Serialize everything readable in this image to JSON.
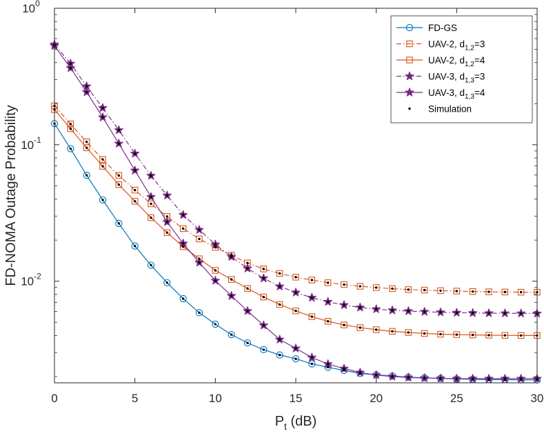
{
  "chart_data": {
    "type": "line",
    "title": "",
    "xlabel": "P",
    "xlabel_sub": "t",
    "xlabel_suffix": " (dB)",
    "ylabel": "FD-NOMA Outage Probability",
    "xlim": [
      0,
      30
    ],
    "ylim": [
      0.0018,
      1
    ],
    "yscale": "log",
    "x_ticks": [
      0,
      5,
      10,
      15,
      20,
      25,
      30
    ],
    "x_tick_labels": [
      "0",
      "5",
      "10",
      "15",
      "20",
      "25",
      "30"
    ],
    "y_ticks": [
      1,
      0.1,
      0.01
    ],
    "y_tick_labels": [
      {
        "base": "10",
        "exp": "0"
      },
      {
        "base": "10",
        "exp": "-1"
      },
      {
        "base": "10",
        "exp": "-2"
      }
    ],
    "grid": false,
    "legend_position": "top-right",
    "x": [
      0,
      1,
      2,
      3,
      4,
      5,
      6,
      7,
      8,
      9,
      10,
      11,
      12,
      13,
      14,
      15,
      16,
      17,
      18,
      19,
      20,
      21,
      22,
      23,
      24,
      25,
      26,
      27,
      28,
      29,
      30
    ],
    "series": [
      {
        "name": "FD-GS",
        "legend": {
          "pre": "FD-GS",
          "sub": "",
          "post": ""
        },
        "color": "#0072BD",
        "dash": "solid",
        "marker": "circle",
        "values": [
          0.143,
          0.0935,
          0.0597,
          0.0394,
          0.0265,
          0.0181,
          0.0131,
          0.00975,
          0.00745,
          0.00588,
          0.00484,
          0.00406,
          0.00353,
          0.00315,
          0.00288,
          0.0027,
          0.00248,
          0.00234,
          0.00222,
          0.00211,
          0.00206,
          0.00202,
          0.00198,
          0.00196,
          0.00194,
          0.00192,
          0.00191,
          0.0019,
          0.0019,
          0.00189,
          0.00189
        ]
      },
      {
        "name": "UAV-2, d1,2=3",
        "legend": {
          "pre": "UAV-2, d",
          "sub": "1,2",
          "post": "=3"
        },
        "color": "#D95319",
        "dash": "dashdot",
        "marker": "square",
        "values": [
          0.193,
          0.142,
          0.105,
          0.078,
          0.0595,
          0.0465,
          0.0369,
          0.0298,
          0.0243,
          0.0204,
          0.0177,
          0.0155,
          0.0136,
          0.0123,
          0.0114,
          0.0107,
          0.0102,
          0.00975,
          0.00945,
          0.00918,
          0.00898,
          0.00882,
          0.00868,
          0.0086,
          0.00852,
          0.00846,
          0.0084,
          0.00836,
          0.00833,
          0.00831,
          0.0083
        ]
      },
      {
        "name": "UAV-2, d1,2=4",
        "legend": {
          "pre": "UAV-2, d",
          "sub": "1,2",
          "post": "=4"
        },
        "color": "#D95319",
        "dash": "solid",
        "marker": "square",
        "values": [
          0.181,
          0.131,
          0.095,
          0.0695,
          0.051,
          0.0385,
          0.0292,
          0.0227,
          0.0179,
          0.0146,
          0.012,
          0.0103,
          0.00884,
          0.00766,
          0.00675,
          0.00606,
          0.0055,
          0.00508,
          0.00478,
          0.00457,
          0.00441,
          0.00429,
          0.00421,
          0.00414,
          0.00409,
          0.00406,
          0.00404,
          0.00402,
          0.00401,
          0.004,
          0.004
        ]
      },
      {
        "name": "UAV-3, d1,3=3",
        "legend": {
          "pre": "UAV-3, d",
          "sub": "1,3",
          "post": "=3"
        },
        "color": "#7E2F8E",
        "dash": "dashdot",
        "marker": "star",
        "values": [
          0.544,
          0.393,
          0.268,
          0.186,
          0.128,
          0.0862,
          0.0593,
          0.0425,
          0.0306,
          0.0238,
          0.0186,
          0.0151,
          0.0124,
          0.0105,
          0.00916,
          0.00827,
          0.00758,
          0.00706,
          0.00669,
          0.00642,
          0.00624,
          0.00612,
          0.00604,
          0.00597,
          0.00592,
          0.00588,
          0.00585,
          0.00583,
          0.00582,
          0.00581,
          0.0058
        ]
      },
      {
        "name": "UAV-3, d1,3=4",
        "legend": {
          "pre": "UAV-3, d",
          "sub": "1,3",
          "post": "=4"
        },
        "color": "#7E2F8E",
        "dash": "solid",
        "marker": "star",
        "values": [
          0.53,
          0.365,
          0.243,
          0.159,
          0.102,
          0.0648,
          0.0415,
          0.0272,
          0.0189,
          0.0137,
          0.0101,
          0.00781,
          0.00605,
          0.00475,
          0.00374,
          0.00322,
          0.00276,
          0.00247,
          0.00229,
          0.00214,
          0.00205,
          0.002,
          0.00197,
          0.00195,
          0.00194,
          0.00193,
          0.00193,
          0.00193,
          0.00193,
          0.00193,
          0.00193
        ]
      }
    ],
    "simulation": {
      "name": "Simulation",
      "legend": {
        "pre": "Simulation",
        "sub": "",
        "post": ""
      },
      "color": "#000000",
      "marker": "dot"
    }
  }
}
